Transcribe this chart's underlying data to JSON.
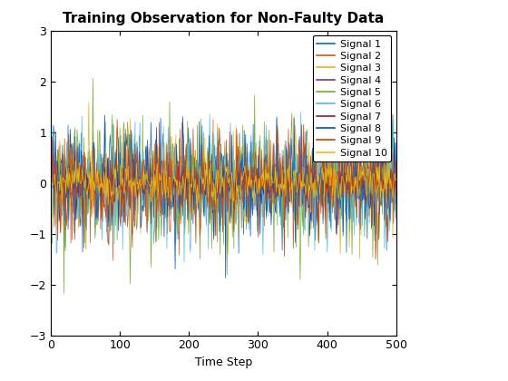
{
  "title": "Training Observation for Non-Faulty Data",
  "xlabel": "Time Step",
  "n_steps": 500,
  "n_signals": 10,
  "ylim": [
    -3,
    3
  ],
  "xlim": [
    0,
    500
  ],
  "xticks": [
    0,
    100,
    200,
    300,
    400,
    500
  ],
  "yticks": [
    -3,
    -2,
    -1,
    0,
    1,
    2,
    3
  ],
  "signal_colors": [
    "#0072BD",
    "#D95319",
    "#EDB120",
    "#7E2F8E",
    "#77AC30",
    "#4DBEEE",
    "#A2142F",
    "#0050C8",
    "#D44000",
    "#F0C000"
  ],
  "signal_labels": [
    "Signal 1",
    "Signal 2",
    "Signal 3",
    "Signal 4",
    "Signal 5",
    "Signal 6",
    "Signal 7",
    "Signal 8",
    "Signal 9",
    "Signal 10"
  ],
  "signal_scales": [
    0.5,
    0.5,
    0.5,
    0.15,
    0.7,
    0.6,
    0.15,
    0.5,
    0.5,
    0.2
  ],
  "linewidth": 0.5,
  "title_fontsize": 11,
  "label_fontsize": 9,
  "tick_fontsize": 9,
  "legend_fontsize": 8
}
